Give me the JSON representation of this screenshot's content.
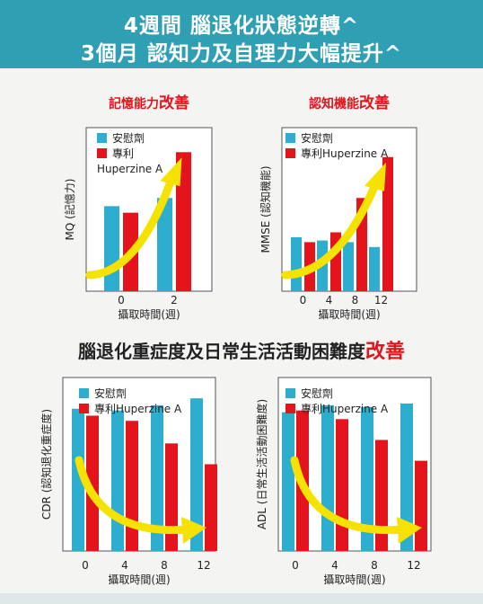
{
  "header": {
    "line1": "4週間 腦退化狀態逆轉^",
    "line2": "3個月 認知力及自理力大幅提升^"
  },
  "section_title": {
    "main": "腦退化重症度及日常生活活動困難度",
    "emphasis": "改善"
  },
  "colors": {
    "banner": "#2f9fb3",
    "placebo": "#2eaecf",
    "huperzine": "#e3141b",
    "arrow": "#f5e200",
    "emphasis": "#e3141b"
  },
  "chart_data": [
    {
      "type": "bar",
      "title_main": "記憶能力",
      "title_emphasis": "改善",
      "ylabel": "MQ (記憶力)",
      "xlabel": "攝取時間(週)",
      "categories": [
        "0",
        "2"
      ],
      "series": [
        {
          "name": "安慰劑",
          "values": [
            52,
            57
          ]
        },
        {
          "name": "專利 Huperzine A",
          "values": [
            48,
            85
          ]
        }
      ],
      "legend": [
        "安慰劑",
        "專利",
        "Huperzine A"
      ],
      "ylim": [
        0,
        100
      ],
      "trend_arrow": "up"
    },
    {
      "type": "bar",
      "title_main": "認知機能",
      "title_emphasis": "改善",
      "ylabel": "MMSE (認知機能)",
      "xlabel": "攝取時間(週)",
      "categories": [
        "0",
        "4",
        "8",
        "12"
      ],
      "series": [
        {
          "name": "安慰劑",
          "values": [
            33,
            31,
            30,
            27
          ]
        },
        {
          "name": "專利Huperzine A",
          "values": [
            30,
            36,
            57,
            82
          ]
        }
      ],
      "legend": [
        "安慰劑",
        "專利Huperzine A"
      ],
      "ylim": [
        0,
        100
      ],
      "trend_arrow": "up"
    },
    {
      "type": "bar",
      "title_main": "",
      "title_emphasis": "",
      "ylabel": "CDR (認知退化重症度)",
      "xlabel": "攝取時間(週)",
      "categories": [
        "0",
        "4",
        "8",
        "12"
      ],
      "series": [
        {
          "name": "安慰劑",
          "values": [
            82,
            81,
            84,
            88
          ]
        },
        {
          "name": "專利Huperzine A",
          "values": [
            78,
            75,
            62,
            50
          ]
        }
      ],
      "legend": [
        "安慰劑",
        "專利Huperzine A"
      ],
      "ylim": [
        0,
        100
      ],
      "trend_arrow": "down"
    },
    {
      "type": "bar",
      "title_main": "",
      "title_emphasis": "",
      "ylabel": "ADL (日常生活活動困難度)",
      "xlabel": "攝取時間(週)",
      "categories": [
        "0",
        "4",
        "8",
        "12"
      ],
      "series": [
        {
          "name": "安慰劑",
          "values": [
            80,
            84,
            83,
            85
          ]
        },
        {
          "name": "專利Huperzine A",
          "values": [
            81,
            76,
            64,
            52
          ]
        }
      ],
      "legend": [
        "安慰劑",
        "專利Huperzine A"
      ],
      "ylim": [
        0,
        100
      ],
      "trend_arrow": "down"
    }
  ]
}
